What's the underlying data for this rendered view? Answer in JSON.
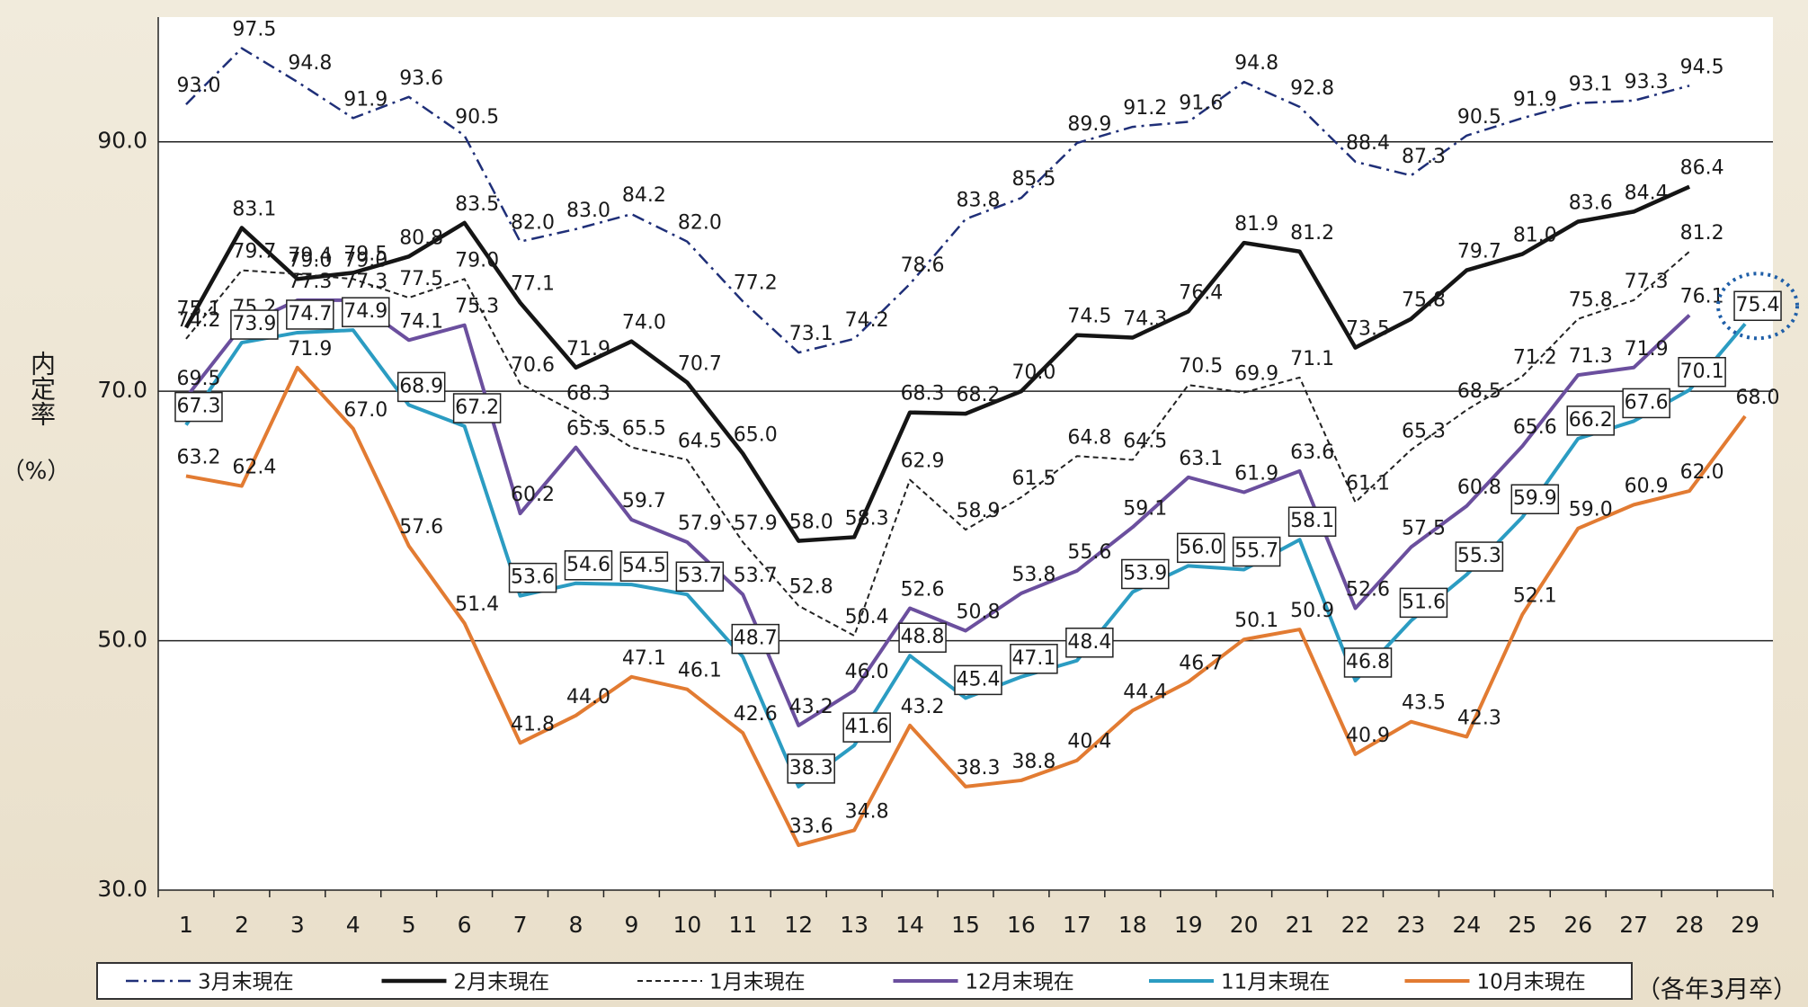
{
  "chart_data": {
    "type": "line",
    "categories": [
      "1",
      "2",
      "3",
      "4",
      "5",
      "6",
      "7",
      "8",
      "9",
      "10",
      "11",
      "12",
      "13",
      "14",
      "15",
      "16",
      "17",
      "18",
      "19",
      "20",
      "21",
      "22",
      "23",
      "24",
      "25",
      "26",
      "27",
      "28",
      "29"
    ],
    "ylim": [
      30,
      100
    ],
    "yticks": [
      {
        "value": 30,
        "label": "30.0"
      },
      {
        "value": 50,
        "label": "50.0"
      },
      {
        "value": 70,
        "label": "70.0"
      },
      {
        "value": 90,
        "label": "90.0"
      }
    ],
    "grid": true,
    "y_label": "内定率",
    "y_unit": "（%）",
    "x_note": "（各年3月卒）",
    "legend": "bottom",
    "series": [
      {
        "name": "3月末現在",
        "color": "#1f2f78",
        "style": "dash-dot",
        "values": [
          93.0,
          97.5,
          94.8,
          91.9,
          93.6,
          90.5,
          82.0,
          83.0,
          84.2,
          82.0,
          77.2,
          73.1,
          74.2,
          78.6,
          83.8,
          85.5,
          89.9,
          91.2,
          91.6,
          94.8,
          92.8,
          88.4,
          87.3,
          90.5,
          91.9,
          93.1,
          93.3,
          94.5,
          null
        ],
        "value_labels": [
          "93.0",
          "97.5",
          "94.8",
          "91.9",
          "93.6",
          "90.5",
          "82.0",
          "83.0",
          "84.2",
          "82.0",
          "77.2",
          "73.1",
          "74.2",
          "78.6",
          "83.8",
          "85.5",
          "89.9",
          "91.2",
          "91.6",
          "94.8",
          "92.8",
          "88.4",
          "87.3",
          "90.5",
          "91.9",
          "93.1",
          "93.3",
          "94.5",
          null
        ]
      },
      {
        "name": "2月末現在",
        "color": "#151515",
        "style": "solid-bold",
        "values": [
          75.1,
          83.1,
          79.0,
          79.5,
          80.8,
          83.5,
          77.1,
          71.9,
          74.0,
          70.7,
          65.0,
          58.0,
          58.3,
          68.3,
          68.2,
          70.0,
          74.5,
          74.3,
          76.4,
          81.9,
          81.2,
          73.5,
          75.8,
          79.7,
          81.0,
          83.6,
          84.4,
          86.4,
          null
        ],
        "value_labels": [
          "75.1",
          "83.1",
          "79.0",
          "79.5",
          "80.8",
          "83.5",
          "77.1",
          "71.9",
          "74.0",
          "70.7",
          "65.0",
          "58.0",
          "58.3",
          "68.3",
          "68.2",
          "70.0",
          "74.5",
          "74.3",
          "76.4",
          "81.9",
          "81.2",
          "73.5",
          "75.8",
          "79.7",
          "81.0",
          "83.6",
          "84.4",
          "86.4",
          null
        ]
      },
      {
        "name": "1月末現在",
        "color": "#222222",
        "style": "dashed",
        "values": [
          74.2,
          79.7,
          79.4,
          79.0,
          77.5,
          79.0,
          70.6,
          68.3,
          65.5,
          64.5,
          57.9,
          52.8,
          50.4,
          62.9,
          58.9,
          61.5,
          64.8,
          64.5,
          70.5,
          69.9,
          71.1,
          61.1,
          65.3,
          68.5,
          71.2,
          75.8,
          77.3,
          81.2,
          null
        ],
        "value_labels": [
          "74.2",
          "79.7",
          "79.4",
          "79.0",
          "77.5",
          "79.0",
          "70.6",
          "68.3",
          "65.5",
          "64.5",
          "57.9",
          "52.8",
          "50.4",
          "62.9",
          "58.9",
          "61.5",
          "64.8",
          "64.5",
          "70.5",
          "69.9",
          "71.1",
          "61.1",
          "65.3",
          "68.5",
          "71.2",
          "75.8",
          "77.3",
          "81.2",
          null
        ]
      },
      {
        "name": "12月末現在",
        "color": "#6b4f9e",
        "style": "solid",
        "values": [
          69.5,
          75.2,
          77.3,
          77.3,
          74.1,
          75.3,
          60.2,
          65.5,
          59.7,
          57.9,
          53.7,
          43.2,
          46.0,
          52.6,
          50.8,
          53.8,
          55.6,
          59.1,
          63.1,
          61.9,
          63.6,
          52.6,
          57.5,
          60.8,
          65.6,
          71.3,
          71.9,
          76.1,
          null
        ],
        "value_labels": [
          "69.5",
          "75.2",
          "77.3",
          "77.3",
          "74.1",
          "75.3",
          "60.2",
          "65.5",
          "59.7",
          "57.9",
          "53.7",
          "43.2",
          "46.0",
          "52.6",
          "50.8",
          "53.8",
          "55.6",
          "59.1",
          "63.1",
          "61.9",
          "63.6",
          "52.6",
          "57.5",
          "60.8",
          "65.6",
          "71.3",
          "71.9",
          "76.1",
          null
        ]
      },
      {
        "name": "11月末現在",
        "color": "#2b9cc2",
        "style": "solid",
        "boxed_labels": true,
        "values": [
          67.3,
          73.9,
          74.7,
          74.9,
          68.9,
          67.2,
          53.6,
          54.6,
          54.5,
          53.7,
          48.7,
          38.3,
          41.6,
          48.8,
          45.4,
          47.1,
          48.4,
          53.9,
          56.0,
          55.7,
          58.1,
          46.8,
          51.6,
          55.3,
          59.9,
          66.2,
          67.6,
          70.1,
          75.4
        ],
        "value_labels": [
          "67.3",
          "73.9",
          "74.7",
          "74.9",
          "68.9",
          "67.2",
          "53.6",
          "54.6",
          "54.5",
          "53.7",
          "48.7",
          "38.3",
          "41.6",
          "48.8",
          "45.4",
          "47.1",
          "48.4",
          "53.9",
          "56.0",
          "55.7",
          "58.1",
          "46.8",
          "51.6",
          "55.3",
          "59.9",
          "66.2",
          "67.6",
          "70.1",
          "75.4"
        ]
      },
      {
        "name": "10月末現在",
        "color": "#e27b32",
        "style": "solid",
        "values": [
          63.2,
          62.4,
          71.9,
          67.0,
          57.6,
          51.4,
          41.8,
          44.0,
          47.1,
          46.1,
          42.6,
          33.6,
          34.8,
          43.2,
          38.3,
          38.8,
          40.4,
          44.4,
          46.7,
          50.1,
          50.9,
          40.9,
          43.5,
          42.3,
          52.1,
          59.0,
          60.9,
          62.0,
          68.0
        ],
        "value_labels": [
          "63.2",
          "62.4",
          "71.9",
          "67.0",
          "57.6",
          "51.4",
          "41.8",
          "44.0",
          "47.1",
          "46.1",
          "42.6",
          "33.6",
          "34.8",
          "43.2",
          "38.3",
          "38.8",
          "40.4",
          "44.4",
          "46.7",
          "50.1",
          "50.9",
          "40.9",
          "43.5",
          "42.3",
          "52.1",
          "59.0",
          "60.9",
          "62.0",
          "68.0"
        ]
      }
    ]
  }
}
